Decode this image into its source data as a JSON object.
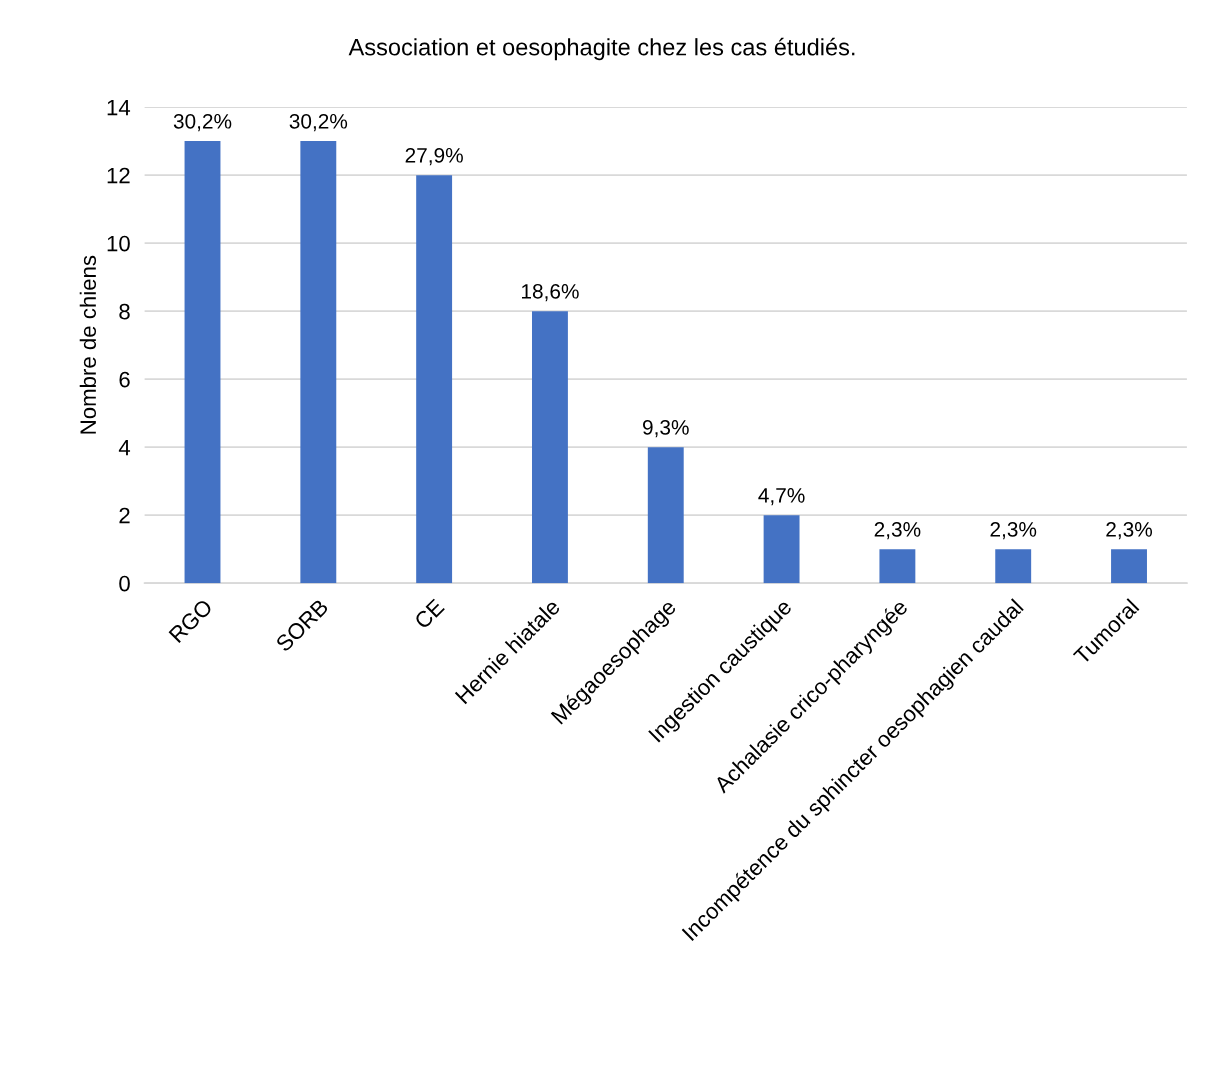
{
  "chart_data": {
    "type": "bar",
    "title": "Association et oesophagite chez les cas étudiés.",
    "ylabel": "Nombre de chiens",
    "categories": [
      "RGO",
      "SORB",
      "CE",
      "Hernie hiatale",
      "Mégaoesophage",
      "Ingestion caustique",
      "Achalasie crico-pharyngée",
      "Incompétence du sphincter oesophagien caudal",
      "Tumoral"
    ],
    "values": [
      13,
      13,
      12,
      8,
      4,
      2,
      1,
      1,
      1
    ],
    "annotations": [
      {
        "text": "30,2%",
        "x": "RGO",
        "y": 13
      },
      {
        "text": "30,2%",
        "x": "SORB",
        "y": 13
      },
      {
        "text": "27,9%",
        "x": "CE",
        "y": 12
      },
      {
        "text": "18,6%",
        "x": "Hernie hiatale",
        "y": 8
      },
      {
        "text": "9,3%",
        "x": "Mégaoesophage",
        "y": 4
      },
      {
        "text": "4,7%",
        "x": "Ingestion caustique",
        "y": 2
      },
      {
        "text": "2,3%",
        "x": "Achalasie crico-pharyngée",
        "y": 1
      },
      {
        "text": "2,3%",
        "x": "Incompétence du sphincter oesophagien caudal",
        "y": 1
      },
      {
        "text": "2,3%",
        "x": "Tumoral",
        "y": 1
      }
    ],
    "color": "#4472c4",
    "ylim": [
      0,
      14
    ],
    "yticks": [
      0,
      2,
      4,
      6,
      8,
      10,
      12,
      14
    ],
    "grid": "y",
    "legend": false
  }
}
